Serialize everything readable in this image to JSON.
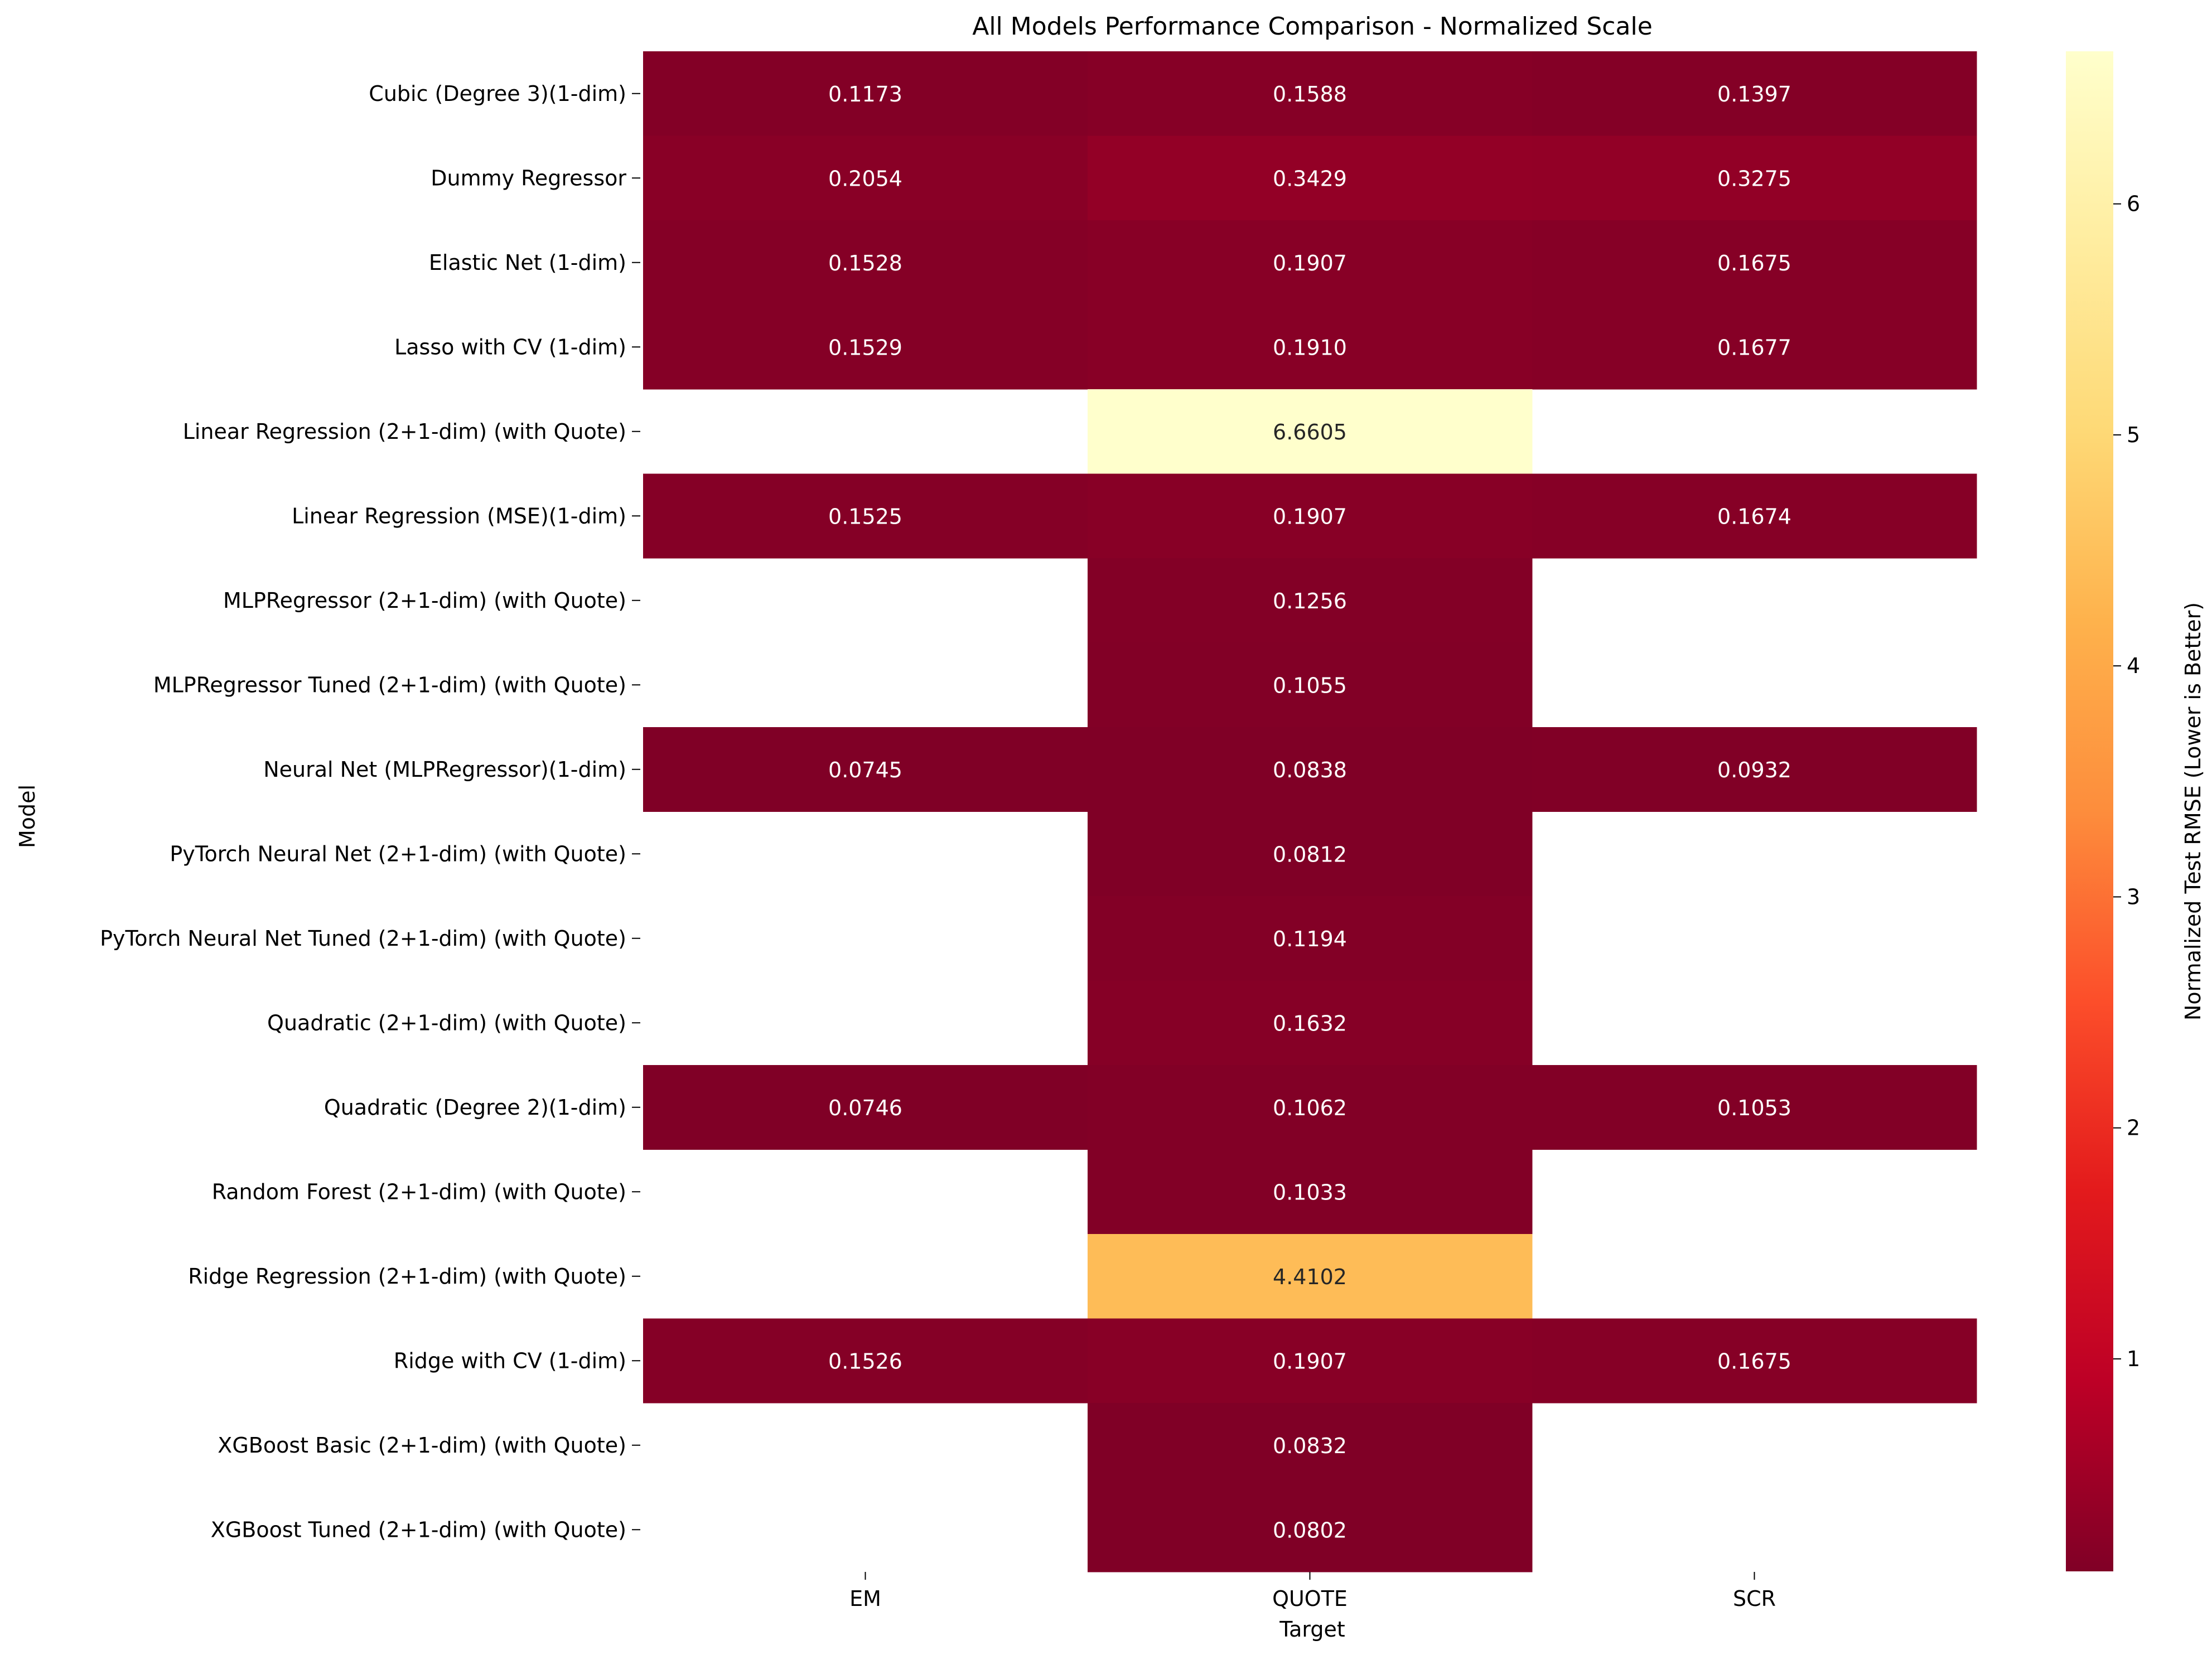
{
  "chart_data": {
    "type": "heatmap",
    "title": "All Models Performance Comparison - Normalized Scale",
    "xlabel": "Target",
    "ylabel": "Model",
    "colorbar_label": "Normalized Test RMSE (Lower is Better)",
    "colormap": "YlOrRd_r",
    "color_range": [
      0.0802,
      6.6605
    ],
    "colorbar_ticks": [
      1,
      2,
      3,
      4,
      5,
      6
    ],
    "columns": [
      "EM",
      "QUOTE",
      "SCR"
    ],
    "rows": [
      "Cubic (Degree 3)(1-dim)",
      "Dummy Regressor",
      "Elastic Net (1-dim)",
      "Lasso with CV (1-dim)",
      "Linear Regression (2+1-dim) (with Quote)",
      "Linear Regression (MSE)(1-dim)",
      "MLPRegressor (2+1-dim) (with Quote)",
      "MLPRegressor Tuned (2+1-dim) (with Quote)",
      "Neural Net (MLPRegressor)(1-dim)",
      "PyTorch Neural Net (2+1-dim) (with Quote)",
      "PyTorch Neural Net Tuned (2+1-dim) (with Quote)",
      "Quadratic (2+1-dim) (with Quote)",
      "Quadratic (Degree 2)(1-dim)",
      "Random Forest (2+1-dim) (with Quote)",
      "Ridge Regression (2+1-dim) (with Quote)",
      "Ridge with CV (1-dim)",
      "XGBoost Basic (2+1-dim) (with Quote)",
      "XGBoost Tuned (2+1-dim) (with Quote)"
    ],
    "values": [
      [
        0.1173,
        0.1588,
        0.1397
      ],
      [
        0.2054,
        0.3429,
        0.3275
      ],
      [
        0.1528,
        0.1907,
        0.1675
      ],
      [
        0.1529,
        0.191,
        0.1677
      ],
      [
        null,
        6.6605,
        null
      ],
      [
        0.1525,
        0.1907,
        0.1674
      ],
      [
        null,
        0.1256,
        null
      ],
      [
        null,
        0.1055,
        null
      ],
      [
        0.0745,
        0.0838,
        0.0932
      ],
      [
        null,
        0.0812,
        null
      ],
      [
        null,
        0.1194,
        null
      ],
      [
        null,
        0.1632,
        null
      ],
      [
        0.0746,
        0.1062,
        0.1053
      ],
      [
        null,
        0.1033,
        null
      ],
      [
        null,
        4.4102,
        null
      ],
      [
        0.1526,
        0.1907,
        0.1675
      ],
      [
        null,
        0.0832,
        null
      ],
      [
        null,
        0.0802,
        null
      ]
    ],
    "value_format": "4 decimals"
  }
}
